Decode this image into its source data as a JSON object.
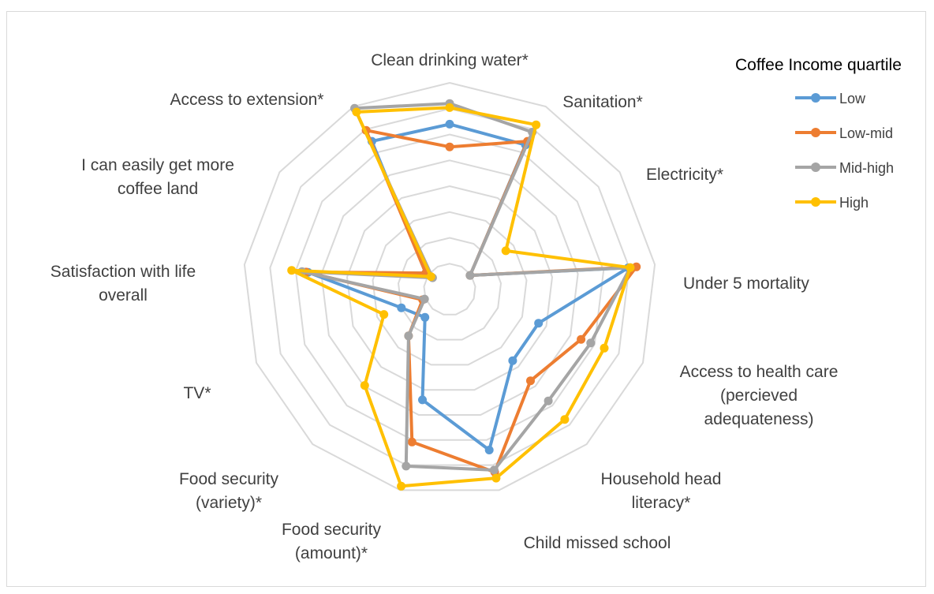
{
  "chart_data": {
    "type": "radar",
    "legend_title": "Coffee Income quartile",
    "legend_position": "top-right",
    "grid": true,
    "axes": [
      "Clean drinking water*",
      "Sanitation*",
      "Electricity*",
      "Under 5 mortality",
      "Access to health care (percieved adequateness)",
      "Household head literacy*",
      "Child missed school",
      "Food security (amount)*",
      "Food security (variety)*",
      "TV*",
      "Satisfaction with life overall",
      "I can easily get more coffee land",
      "Access to extension*"
    ],
    "axis_label_lines": [
      [
        "Clean drinking water*"
      ],
      [
        "Sanitation*"
      ],
      [
        "Electricity*"
      ],
      [
        "Under 5 mortality"
      ],
      [
        "Access to health care",
        "(percieved",
        "adequateness)"
      ],
      [
        "Household head",
        "literacy*"
      ],
      [
        "Child missed school"
      ],
      [
        "Food security",
        "(amount)*"
      ],
      [
        "Food security",
        "(variety)*"
      ],
      [
        "TV*"
      ],
      [
        "Satisfaction with life",
        "overall"
      ],
      [
        "I can easily get more",
        "coffee land"
      ],
      [
        "Access to extension*"
      ]
    ],
    "rmax": 1.0,
    "grid_levels": [
      0.125,
      0.25,
      0.375,
      0.5,
      0.625,
      0.75,
      0.875,
      1.0
    ],
    "series": [
      {
        "name": "Low",
        "color": "#5B9BD5",
        "values": [
          0.8,
          0.79,
          0.12,
          0.87,
          0.46,
          0.46,
          0.8,
          0.55,
          0.18,
          0.25,
          0.69,
          0.14,
          0.81
        ]
      },
      {
        "name": "Low-mid",
        "color": "#ED7D31",
        "values": [
          0.69,
          0.81,
          0.12,
          0.91,
          0.68,
          0.59,
          0.91,
          0.76,
          0.3,
          0.14,
          0.7,
          0.14,
          0.87
        ]
      },
      {
        "name": "Mid-high",
        "color": "#A5A5A5",
        "values": [
          0.9,
          0.86,
          0.12,
          0.88,
          0.73,
          0.72,
          0.9,
          0.88,
          0.3,
          0.13,
          0.72,
          0.1,
          0.99
        ]
      },
      {
        "name": "High",
        "color": "#FFC000",
        "values": [
          0.88,
          0.9,
          0.33,
          0.88,
          0.8,
          0.84,
          0.94,
          0.98,
          0.62,
          0.34,
          0.77,
          0.11,
          0.97
        ]
      }
    ]
  }
}
